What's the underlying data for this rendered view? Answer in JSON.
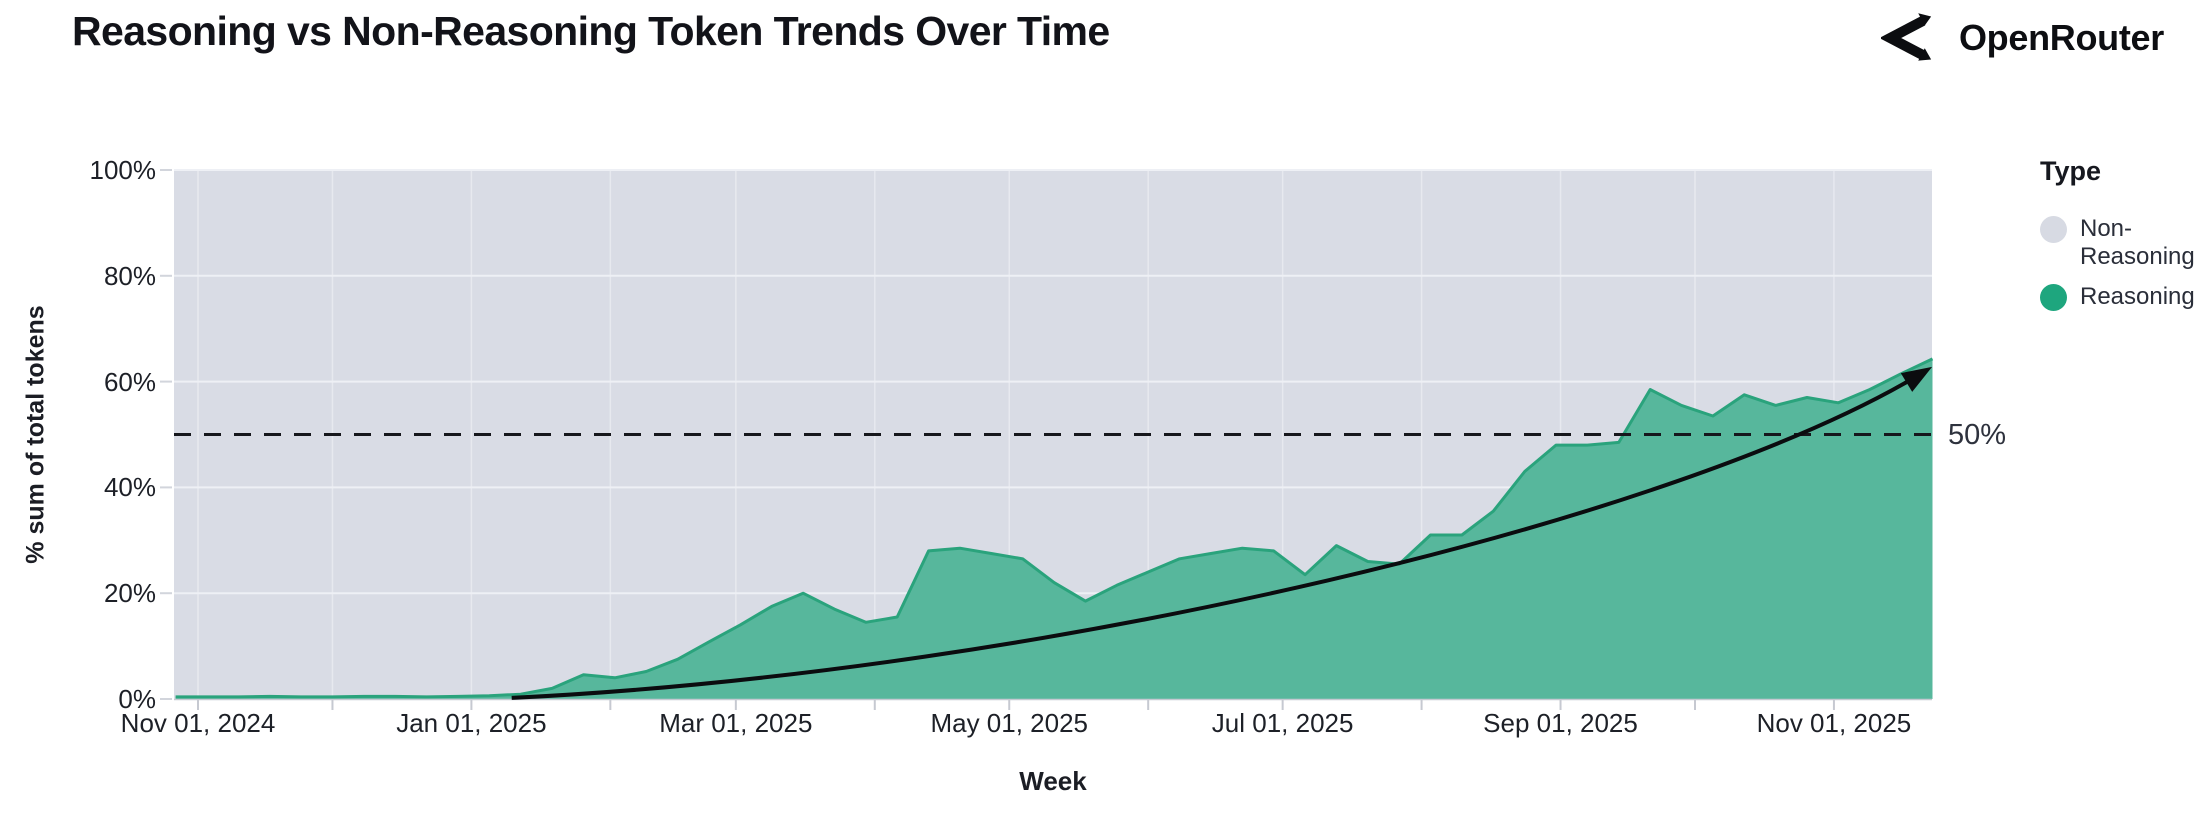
{
  "header": {
    "title": "Reasoning vs Non-Reasoning Token Trends Over Time",
    "brand": "OpenRouter"
  },
  "chart_data": {
    "type": "area",
    "stacked_to_100_percent": true,
    "title": "Reasoning vs Non-Reasoning Token Trends Over Time",
    "xlabel": "Week",
    "ylabel": "% sum of total tokens",
    "ylim": [
      0,
      100
    ],
    "grid": true,
    "y_ticks": [
      {
        "value": 0,
        "label": "0%"
      },
      {
        "value": 20,
        "label": "20%"
      },
      {
        "value": 40,
        "label": "40%"
      },
      {
        "value": 60,
        "label": "60%"
      },
      {
        "value": 80,
        "label": "80%"
      },
      {
        "value": 100,
        "label": "100%"
      }
    ],
    "x_ticks": [
      {
        "date": "2024-11-01",
        "label": "Nov 01, 2024"
      },
      {
        "date": "2025-01-01",
        "label": "Jan 01, 2025"
      },
      {
        "date": "2025-03-01",
        "label": "Mar 01, 2025"
      },
      {
        "date": "2025-05-01",
        "label": "May 01, 2025"
      },
      {
        "date": "2025-07-01",
        "label": "Jul 01, 2025"
      },
      {
        "date": "2025-09-01",
        "label": "Sep 01, 2025"
      },
      {
        "date": "2025-11-01",
        "label": "Nov 01, 2025"
      }
    ],
    "legend": {
      "title": "Type",
      "position": "right",
      "items": [
        {
          "label": "Non-Reasoning",
          "color": "#d7dae3"
        },
        {
          "label": "Reasoning",
          "color": "#1ea67e"
        }
      ]
    },
    "annotations": {
      "dashed_line": {
        "value": 50,
        "label": "50%",
        "color": "#16171c",
        "style": "dashed"
      },
      "trend_arrow": {
        "shape": "exponential-curve-with-arrowhead",
        "color": "#0b0c0f",
        "from_date": "2025-01-10",
        "from_value": 0.2,
        "to_date": "2025-11-21",
        "to_value": 61.8
      }
    },
    "series": [
      {
        "name": "Reasoning",
        "unit": "% of total tokens",
        "fill_color": "#57b79c",
        "stroke_color": "#2aa37c",
        "week_dates": [
          "2024-10-27",
          "2024-11-03",
          "2024-11-10",
          "2024-11-17",
          "2024-11-24",
          "2024-12-01",
          "2024-12-08",
          "2024-12-15",
          "2024-12-22",
          "2024-12-29",
          "2025-01-05",
          "2025-01-12",
          "2025-01-19",
          "2025-01-26",
          "2025-02-02",
          "2025-02-09",
          "2025-02-16",
          "2025-02-23",
          "2025-03-02",
          "2025-03-09",
          "2025-03-16",
          "2025-03-23",
          "2025-03-30",
          "2025-04-06",
          "2025-04-13",
          "2025-04-20",
          "2025-04-27",
          "2025-05-04",
          "2025-05-11",
          "2025-05-18",
          "2025-05-25",
          "2025-06-01",
          "2025-06-08",
          "2025-06-15",
          "2025-06-22",
          "2025-06-29",
          "2025-07-06",
          "2025-07-13",
          "2025-07-20",
          "2025-07-27",
          "2025-08-03",
          "2025-08-10",
          "2025-08-17",
          "2025-08-24",
          "2025-08-31",
          "2025-09-07",
          "2025-09-14",
          "2025-09-21",
          "2025-09-28",
          "2025-10-05",
          "2025-10-12",
          "2025-10-19",
          "2025-10-26",
          "2025-11-02",
          "2025-11-09",
          "2025-11-16",
          "2025-11-23"
        ],
        "values": [
          0.4,
          0.4,
          0.4,
          0.5,
          0.4,
          0.4,
          0.5,
          0.5,
          0.4,
          0.5,
          0.6,
          0.9,
          2.0,
          4.6,
          4.0,
          5.2,
          7.5,
          10.8,
          14.0,
          17.5,
          20.0,
          17.0,
          14.5,
          15.5,
          28.0,
          28.5,
          27.5,
          26.5,
          22.0,
          18.5,
          21.5,
          24.0,
          26.5,
          27.5,
          28.5,
          28.0,
          23.5,
          29.0,
          26.0,
          25.5,
          31.0,
          31.0,
          35.5,
          43.0,
          48.0,
          48.0,
          48.5,
          58.5,
          55.5,
          53.5,
          57.5,
          55.5,
          57.0,
          56.0,
          58.5,
          61.5,
          64.3
        ]
      },
      {
        "name": "Non-Reasoning",
        "unit": "% of total tokens",
        "fill_color": "#d7dae3",
        "definition": "remainder: 100% minus Reasoning share (area stacked above Reasoning up to 100%)"
      }
    ],
    "colors": {
      "plot_background": "#d9dce5",
      "gridline": "#eef0f5",
      "axis_tick": "#c6c9d1",
      "text": "#1d2027"
    }
  }
}
